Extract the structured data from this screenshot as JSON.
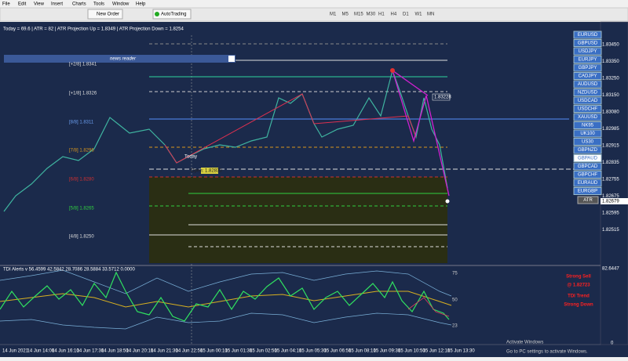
{
  "menu": [
    "File",
    "Edit",
    "View",
    "Insert",
    "Charts",
    "Tools",
    "Window",
    "Help"
  ],
  "toolbar": {
    "new_order": "New Order",
    "auto_trading": "AutoTrading",
    "timeframes": [
      "M1",
      "M5",
      "M15",
      "M30",
      "H1",
      "H4",
      "D1",
      "W1",
      "MN"
    ]
  },
  "info_line": "Today = 69.6  |  ATR = 82  |  ATR Projection Up = 1.8349  |  ATR Projection Down = 1.8254",
  "news_reader": "news reader",
  "levels": [
    "[+2/8] 1.8341",
    "[+1/8] 1.8326",
    "[8/8] 1.8311",
    "[7/8] 1.8296",
    "[6/8] 1.8280",
    "[5/8] 1.8265",
    "[4/8] 1.8250"
  ],
  "price_axis": [
    "1.83450",
    "1.83350",
    "1.83250",
    "1.83150",
    "1.83080",
    "1.82985",
    "1.82915",
    "1.82835",
    "1.82755",
    "1.82675",
    "1.82595",
    "1.82515"
  ],
  "price_markers": {
    "ask": "1.83228",
    "current": "1.82679"
  },
  "chart_labels": {
    "today": "Today",
    "open": "Open: 1.82830"
  },
  "time_axis": [
    "14 Jun 2021",
    "14 Jun 14:00",
    "14 Jun 16:10",
    "14 Jun 17:30",
    "14 Jun 18:50",
    "14 Jun 20:10",
    "14 Jun 21:30",
    "14 Jun 22:50",
    "15 Jun 00:10",
    "15 Jun 01:30",
    "15 Jun 02:50",
    "15 Jun 04:10",
    "15 Jun 05:30",
    "15 Jun 06:50",
    "15 Jun 08:10",
    "15 Jun 09:30",
    "15 Jun 10:50",
    "15 Jun 12:10",
    "15 Jun 13:30"
  ],
  "symbols": [
    "EURUSD",
    "GBPUSD",
    "USDJPY",
    "EURJPY",
    "GBPJPY",
    "CADJPY",
    "AUDUSD",
    "NZDUSD",
    "USDCAD",
    "USDCHF",
    "XAUUSD",
    "NK95",
    "UK100",
    "US30",
    "GBPNZD",
    "GBPAUD",
    "GBPCAD",
    "GBPCHF",
    "EURAUD",
    "EURGBP"
  ],
  "atr_button": "ATR",
  "indicator": {
    "title": "TDI Alerts v 56.4599 42.5842 28.7086 28.5884 33.5712 0.0000",
    "levels": [
      "75",
      "50",
      "23"
    ],
    "axis_top": "82.6447",
    "axis_bottom": "0",
    "signals": [
      "Strong Sell",
      "@ 1.82723",
      "TDI Trend",
      "Strong Down"
    ]
  },
  "watermark": {
    "title": "Activate Windows",
    "subtitle": "Go to PC settings to activate Windows."
  }
}
